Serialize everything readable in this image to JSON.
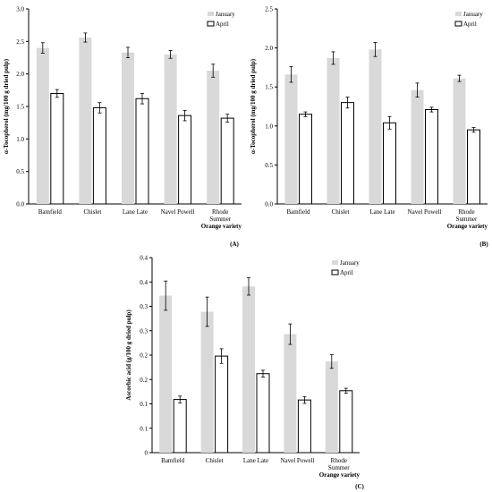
{
  "colors": {
    "january": "#d9d9d9",
    "april": "#ffffff",
    "april_stroke": "#000000",
    "axis": "#000000"
  },
  "chart_data": [
    {
      "type": "bar",
      "panel_label": "(A)",
      "ylabel": "α-Tocopherol (mg/100 g dried pulp)",
      "xlabel": "Orange variety",
      "ylim": [
        0,
        3.0
      ],
      "yticks": [
        "0.0",
        "0.5",
        "1.0",
        "1.5",
        "2.0",
        "2.5",
        "3.0"
      ],
      "ytick_values": [
        0,
        0.5,
        1.0,
        1.5,
        2.0,
        2.5,
        3.0
      ],
      "categories": [
        [
          "Bamfield"
        ],
        [
          "Chislet"
        ],
        [
          "Lane Late"
        ],
        [
          "Navel Powell"
        ],
        [
          "Rhode",
          "Summer"
        ]
      ],
      "legend_position": "top-right",
      "series": [
        {
          "name": "January",
          "values": [
            2.4,
            2.56,
            2.33,
            2.3,
            2.05
          ],
          "errors": [
            0.08,
            0.07,
            0.08,
            0.06,
            0.1
          ]
        },
        {
          "name": "April",
          "values": [
            1.7,
            1.48,
            1.62,
            1.36,
            1.32
          ],
          "errors": [
            0.06,
            0.08,
            0.08,
            0.08,
            0.06
          ]
        }
      ]
    },
    {
      "type": "bar",
      "panel_label": "(B)",
      "ylabel": "α-Tocopherol (mg/100 g dried pulp)",
      "xlabel": "Orange variety",
      "ylim": [
        0,
        2.5
      ],
      "yticks": [
        "0.0",
        "0.5",
        "1.0",
        "1.5",
        "2.0",
        "2.5"
      ],
      "ytick_values": [
        0,
        0.5,
        1.0,
        1.5,
        2.0,
        2.5
      ],
      "categories": [
        [
          "Bamfield"
        ],
        [
          "Chislet"
        ],
        [
          "Lane Late"
        ],
        [
          "Navel Powell"
        ],
        [
          "Rhode",
          "Summer"
        ]
      ],
      "legend_position": "top-right",
      "series": [
        {
          "name": "January",
          "values": [
            1.66,
            1.87,
            1.98,
            1.46,
            1.61
          ],
          "errors": [
            0.1,
            0.08,
            0.09,
            0.09,
            0.04
          ]
        },
        {
          "name": "April",
          "values": [
            1.15,
            1.3,
            1.04,
            1.21,
            0.95
          ],
          "errors": [
            0.03,
            0.07,
            0.08,
            0.03,
            0.03
          ]
        }
      ]
    },
    {
      "type": "bar",
      "panel_label": "(C)",
      "ylabel": "Ascorbic acid (g/100 g dried pulp)",
      "xlabel": "Orange variety",
      "ylim": [
        0,
        0.4
      ],
      "yticks": [
        "0",
        "0.1",
        "0.1",
        "0.2",
        "0.2",
        "0.3",
        "0.3",
        "0.4",
        "0.4"
      ],
      "ytick_values": [
        0,
        0.05,
        0.1,
        0.15,
        0.2,
        0.25,
        0.3,
        0.35,
        0.4
      ],
      "categories": [
        [
          "Bamfield"
        ],
        [
          "Chislet"
        ],
        [
          "Lane Late"
        ],
        [
          "Navel Powell"
        ],
        [
          "Rhode",
          "Summer"
        ]
      ],
      "legend_position": "top-right",
      "series": [
        {
          "name": "January",
          "values": [
            0.322,
            0.289,
            0.341,
            0.243,
            0.187
          ],
          "errors": [
            0.03,
            0.03,
            0.018,
            0.021,
            0.014
          ]
        },
        {
          "name": "April",
          "values": [
            0.109,
            0.198,
            0.162,
            0.108,
            0.127
          ],
          "errors": [
            0.007,
            0.015,
            0.007,
            0.007,
            0.005
          ]
        }
      ]
    }
  ]
}
